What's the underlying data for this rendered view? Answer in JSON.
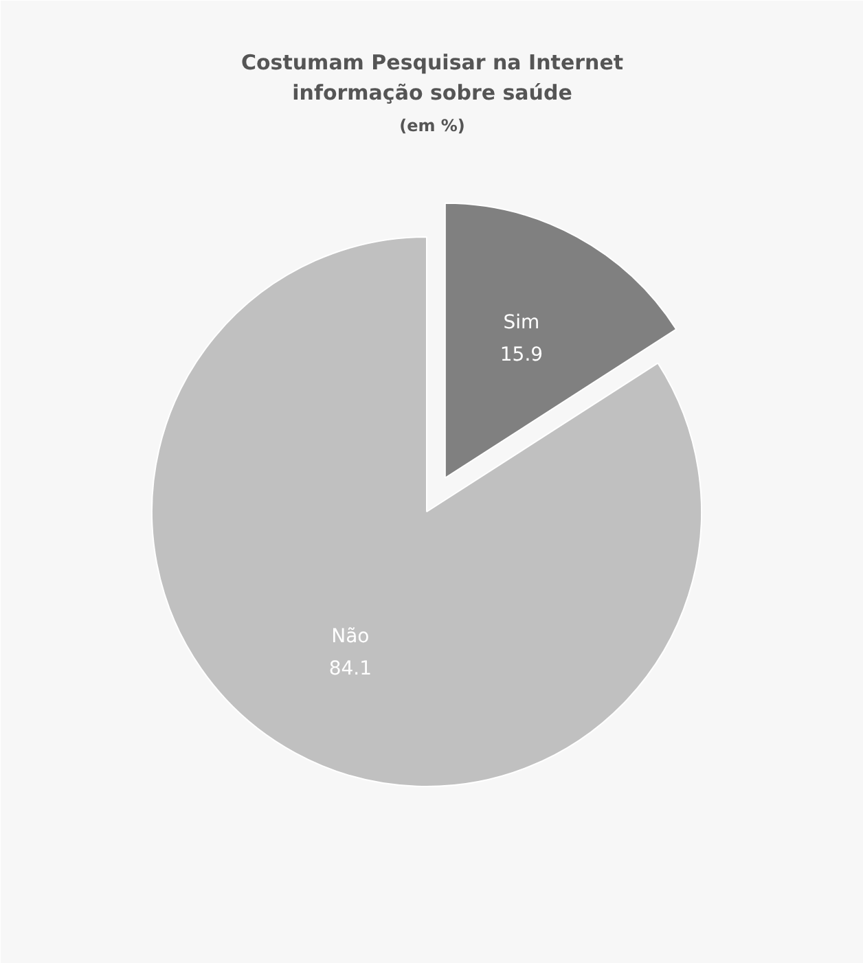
{
  "chart_data": {
    "type": "pie",
    "title": "Costumam Pesquisar na Internet\ninformação sobre saúde",
    "subtitle": "(em %)",
    "categories": [
      "Sim",
      "Não"
    ],
    "values": [
      15.9,
      84.1
    ],
    "colors": [
      "#808080",
      "#c0c0c0"
    ],
    "data_labels": true
  }
}
